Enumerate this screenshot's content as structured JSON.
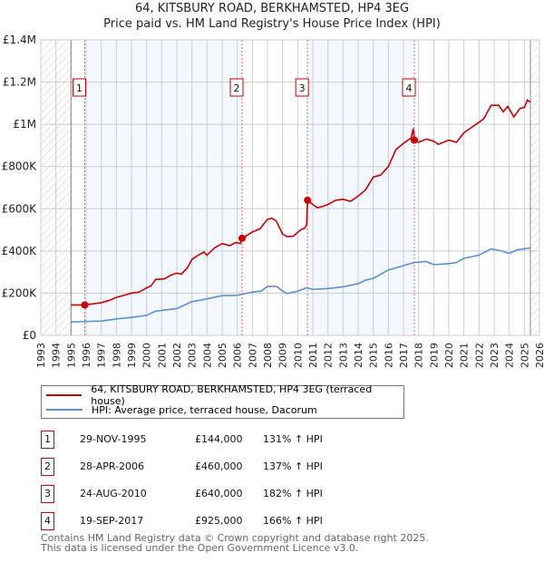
{
  "title_line1": "64, KITSBURY ROAD, BERKHAMSTED, HP4 3EG",
  "title_line2": "Price paid vs. HM Land Registry's House Price Index (HPI)",
  "chart_data": {
    "type": "line",
    "xlim": [
      1993,
      2026
    ],
    "ylim": [
      0,
      1400000
    ],
    "x_ticks": [
      "1993",
      "1994",
      "1995",
      "1996",
      "1997",
      "1998",
      "1999",
      "2000",
      "2001",
      "2002",
      "2003",
      "2004",
      "2005",
      "2006",
      "2007",
      "2008",
      "2009",
      "2010",
      "2011",
      "2012",
      "2013",
      "2014",
      "2015",
      "2016",
      "2017",
      "2018",
      "2019",
      "2020",
      "2021",
      "2022",
      "2023",
      "2024",
      "2025",
      "2026"
    ],
    "y_ticks": [
      {
        "v": 0,
        "label": "£0"
      },
      {
        "v": 200000,
        "label": "£200K"
      },
      {
        "v": 400000,
        "label": "£400K"
      },
      {
        "v": 600000,
        "label": "£600K"
      },
      {
        "v": 800000,
        "label": "£800K"
      },
      {
        "v": 1000000,
        "label": "£1M"
      },
      {
        "v": 1200000,
        "label": "£1.2M"
      },
      {
        "v": 1400000,
        "label": "£1.4M"
      }
    ],
    "data_range": [
      1995,
      2025.4
    ],
    "series": [
      {
        "name": "64, KITSBURY ROAD, BERKHAMSTED, HP4 3EG (terraced house)",
        "color": "#cc0000",
        "points": [
          [
            1995,
            144
          ],
          [
            1995.9,
            144
          ],
          [
            1996.5,
            150
          ],
          [
            1997,
            155
          ],
          [
            1997.5,
            165
          ],
          [
            1998,
            180
          ],
          [
            1998.5,
            190
          ],
          [
            1999,
            200
          ],
          [
            1999.5,
            205
          ],
          [
            2000,
            225
          ],
          [
            2000.3,
            235
          ],
          [
            2000.6,
            265
          ],
          [
            2001.2,
            268
          ],
          [
            2001.6,
            285
          ],
          [
            2002,
            295
          ],
          [
            2002.3,
            290
          ],
          [
            2002.7,
            320
          ],
          [
            2003,
            360
          ],
          [
            2003.3,
            375
          ],
          [
            2003.8,
            395
          ],
          [
            2004,
            380
          ],
          [
            2004.5,
            415
          ],
          [
            2005,
            435
          ],
          [
            2005.5,
            425
          ],
          [
            2005.9,
            440
          ],
          [
            2006.2,
            435
          ],
          [
            2006.33,
            460
          ],
          [
            2007,
            490
          ],
          [
            2007.5,
            505
          ],
          [
            2008,
            550
          ],
          [
            2008.3,
            555
          ],
          [
            2008.6,
            540
          ],
          [
            2009,
            480
          ],
          [
            2009.3,
            468
          ],
          [
            2009.7,
            470
          ],
          [
            2010.2,
            500
          ],
          [
            2010.5,
            510
          ],
          [
            2010.6,
            530
          ],
          [
            2010.65,
            640
          ],
          [
            2011,
            620
          ],
          [
            2011.3,
            605
          ],
          [
            2011.6,
            610
          ],
          [
            2012,
            620
          ],
          [
            2012.5,
            640
          ],
          [
            2013,
            645
          ],
          [
            2013.5,
            635
          ],
          [
            2014,
            660
          ],
          [
            2014.5,
            690
          ],
          [
            2015,
            750
          ],
          [
            2015.5,
            760
          ],
          [
            2016,
            800
          ],
          [
            2016.5,
            880
          ],
          [
            2017,
            910
          ],
          [
            2017.5,
            935
          ],
          [
            2017.65,
            980
          ],
          [
            2017.72,
            925
          ],
          [
            2018,
            915
          ],
          [
            2018.5,
            930
          ],
          [
            2019,
            920
          ],
          [
            2019.3,
            905
          ],
          [
            2020,
            925
          ],
          [
            2020.5,
            915
          ],
          [
            2021,
            960
          ],
          [
            2021.5,
            985
          ],
          [
            2022,
            1010
          ],
          [
            2022.3,
            1025
          ],
          [
            2022.8,
            1090
          ],
          [
            2023.3,
            1090
          ],
          [
            2023.6,
            1060
          ],
          [
            2023.9,
            1085
          ],
          [
            2024.3,
            1035
          ],
          [
            2024.7,
            1075
          ],
          [
            2025,
            1080
          ],
          [
            2025.2,
            1115
          ],
          [
            2025.4,
            1105
          ]
        ]
      },
      {
        "name": "HPI: Average price, terraced house, Dacorum",
        "color": "#5b8fd4",
        "points": [
          [
            1995,
            63
          ],
          [
            1996,
            66
          ],
          [
            1997,
            68
          ],
          [
            1998,
            78
          ],
          [
            1999,
            85
          ],
          [
            2000,
            95
          ],
          [
            2000.6,
            115
          ],
          [
            2002,
            127
          ],
          [
            2003,
            160
          ],
          [
            2003.8,
            170
          ],
          [
            2005,
            188
          ],
          [
            2006,
            190
          ],
          [
            2007,
            205
          ],
          [
            2007.6,
            210
          ],
          [
            2008,
            232
          ],
          [
            2008.6,
            232
          ],
          [
            2009,
            210
          ],
          [
            2009.3,
            198
          ],
          [
            2010,
            210
          ],
          [
            2010.6,
            225
          ],
          [
            2011,
            218
          ],
          [
            2012,
            222
          ],
          [
            2013,
            230
          ],
          [
            2014,
            245
          ],
          [
            2014.5,
            262
          ],
          [
            2015,
            270
          ],
          [
            2016,
            310
          ],
          [
            2017,
            330
          ],
          [
            2017.7,
            345
          ],
          [
            2018.5,
            350
          ],
          [
            2019,
            335
          ],
          [
            2020,
            340
          ],
          [
            2020.5,
            345
          ],
          [
            2021,
            365
          ],
          [
            2022,
            380
          ],
          [
            2022.8,
            410
          ],
          [
            2023.5,
            400
          ],
          [
            2024,
            388
          ],
          [
            2024.5,
            405
          ],
          [
            2025,
            410
          ],
          [
            2025.4,
            415
          ]
        ]
      }
    ],
    "sales": [
      {
        "n": "1",
        "x": 1995.91,
        "value": 144000,
        "date": "29-NOV-1995",
        "price": "£144,000",
        "hpi": "131% ↑ HPI"
      },
      {
        "n": "2",
        "x": 2006.32,
        "value": 460000,
        "date": "28-APR-2006",
        "price": "£460,000",
        "hpi": "137% ↑ HPI"
      },
      {
        "n": "3",
        "x": 2010.65,
        "value": 640000,
        "date": "24-AUG-2010",
        "price": "£640,000",
        "hpi": "182% ↑ HPI"
      },
      {
        "n": "4",
        "x": 2017.72,
        "value": 925000,
        "date": "19-SEP-2017",
        "price": "£925,000",
        "hpi": "166% ↑ HPI"
      }
    ],
    "shaded_ranges": [
      [
        1995.91,
        2006.32
      ],
      [
        2010.65,
        2017.72
      ]
    ]
  },
  "legend": {
    "red": "64, KITSBURY ROAD, BERKHAMSTED, HP4 3EG (terraced house)",
    "blue": "HPI: Average price, terraced house, Dacorum"
  },
  "footer": {
    "line1": "Contains HM Land Registry data © Crown copyright and database right 2025.",
    "line2": "This data is licensed under the Open Government Licence v3.0."
  }
}
